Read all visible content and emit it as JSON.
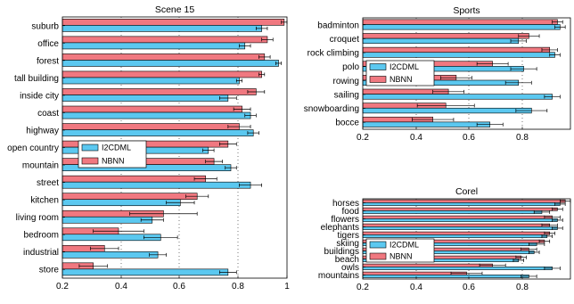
{
  "colors": {
    "i2cdml": "#5bc8f0",
    "nbnn": "#f07880",
    "axis": "#000000",
    "grid": "#555555"
  },
  "chart_data": [
    {
      "type": "bar",
      "orientation": "horizontal",
      "title": "Scene 15",
      "xlim": [
        0.2,
        1.0
      ],
      "xticks": [
        "0.2",
        "0.4",
        "0.6",
        "0.8",
        "1"
      ],
      "grid": "x-dotted",
      "legend_position": "middle-left",
      "categories": [
        "suburb",
        "office",
        "forest",
        "tall building",
        "inside city",
        "coast",
        "highway",
        "open country",
        "mountain",
        "street",
        "kitchen",
        "living room",
        "bedroom",
        "industrial",
        "store"
      ],
      "series": [
        {
          "name": "NBNN",
          "values": [
            0.99,
            0.93,
            0.92,
            0.91,
            0.89,
            0.84,
            0.83,
            0.79,
            0.74,
            0.71,
            0.68,
            0.56,
            0.4,
            0.35,
            0.31
          ],
          "errors": [
            0.01,
            0.02,
            0.02,
            0.01,
            0.03,
            0.03,
            0.04,
            0.03,
            0.03,
            0.04,
            0.04,
            0.12,
            0.09,
            0.05,
            0.05
          ]
        },
        {
          "name": "I2CDML",
          "values": [
            0.91,
            0.85,
            0.97,
            0.83,
            0.79,
            0.87,
            0.88,
            0.72,
            0.8,
            0.87,
            0.62,
            0.52,
            0.55,
            0.54,
            0.79
          ],
          "errors": [
            0.02,
            0.02,
            0.01,
            0.01,
            0.03,
            0.02,
            0.02,
            0.02,
            0.02,
            0.04,
            0.05,
            0.04,
            0.06,
            0.03,
            0.03
          ]
        }
      ]
    },
    {
      "type": "bar",
      "orientation": "horizontal",
      "title": "Sports",
      "xlim": [
        0.2,
        1.0
      ],
      "xticks": [
        "0.2",
        "0.4",
        "0.6",
        "0.8"
      ],
      "grid": "x-dotted",
      "legend_position": "top-left",
      "categories": [
        "badminton",
        "croquet",
        "rock climbing",
        "polo",
        "rowing",
        "sailing",
        "snowboarding",
        "bocce"
      ],
      "series": [
        {
          "name": "NBNN",
          "values": [
            0.95,
            0.84,
            0.92,
            0.7,
            0.56,
            0.53,
            0.52,
            0.47
          ],
          "errors": [
            0.02,
            0.04,
            0.03,
            0.06,
            0.06,
            0.06,
            0.11,
            0.08
          ]
        },
        {
          "name": "I2CDML",
          "values": [
            0.96,
            0.8,
            0.94,
            0.82,
            0.8,
            0.93,
            0.85,
            0.69
          ],
          "errors": [
            0.02,
            0.03,
            0.02,
            0.05,
            0.05,
            0.03,
            0.06,
            0.05
          ]
        }
      ]
    },
    {
      "type": "bar",
      "orientation": "horizontal",
      "title": "Corel",
      "xlim": [
        0.2,
        1.0
      ],
      "xticks": [
        "0.2",
        "0.4",
        "0.6",
        "0.8"
      ],
      "grid": "x-dotted",
      "legend_position": "middle-left",
      "categories": [
        "horses",
        "food",
        "flowers",
        "elephants",
        "tigers",
        "skiing",
        "buildings",
        "beach",
        "owls",
        "mountains"
      ],
      "series": [
        {
          "name": "NBNN",
          "values": [
            0.98,
            0.95,
            0.93,
            0.92,
            0.92,
            0.9,
            0.84,
            0.81,
            0.7,
            0.6
          ],
          "errors": [
            0.02,
            0.02,
            0.03,
            0.03,
            0.02,
            0.02,
            0.03,
            0.02,
            0.05,
            0.06
          ]
        },
        {
          "name": "I2CDML",
          "values": [
            0.96,
            0.89,
            0.95,
            0.95,
            0.91,
            0.87,
            0.86,
            0.8,
            0.93,
            0.84
          ],
          "errors": [
            0.02,
            0.03,
            0.02,
            0.02,
            0.02,
            0.03,
            0.02,
            0.02,
            0.03,
            0.03
          ]
        }
      ]
    }
  ]
}
